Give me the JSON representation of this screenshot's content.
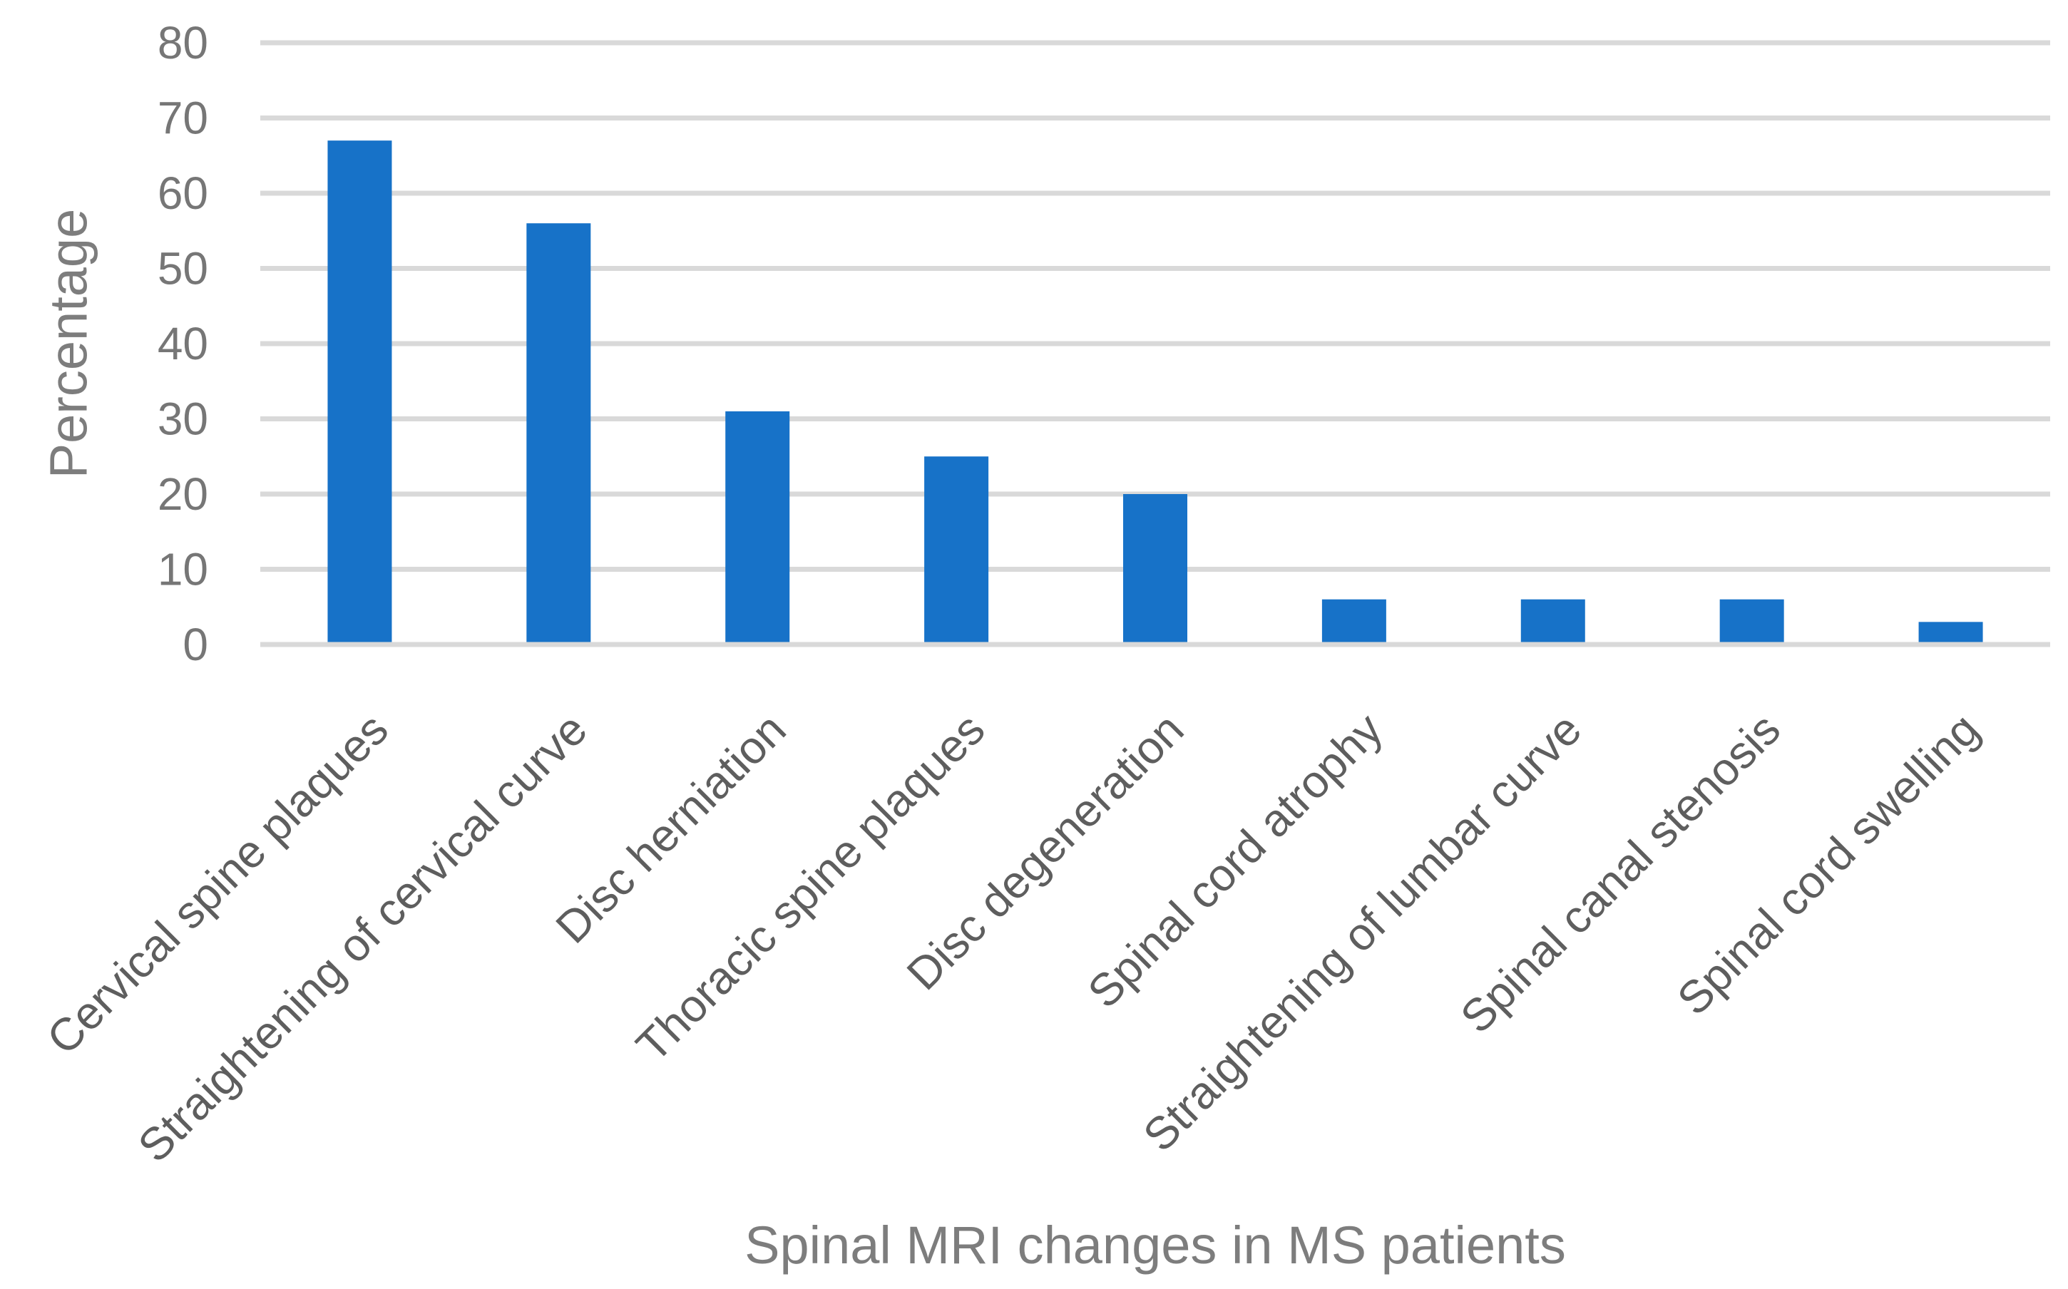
{
  "chart_data": {
    "type": "bar",
    "categories": [
      "Cervical spine plaques",
      "Straightening of cervical curve",
      "Disc herniation",
      "Thoracic spine plaques",
      "Disc degeneration",
      "Spinal cord atrophy",
      "Straightening of lumbar curve",
      "Spinal canal stenosis",
      "Spinal cord swelling"
    ],
    "values": [
      67,
      56,
      31,
      25,
      20,
      6,
      6,
      6,
      3
    ],
    "title": "",
    "xlabel": "Spinal MRI changes in MS patients",
    "ylabel": "Percentage",
    "ylim": [
      0,
      80
    ],
    "ytick_step": 10,
    "ytick_labels": [
      "0",
      "10",
      "20",
      "30",
      "40",
      "50",
      "60",
      "70",
      "80"
    ],
    "grid": true,
    "legend_position": "none",
    "colors": {
      "bar": "#1772C8",
      "gridline": "#D9D9D9",
      "axis_line": "#D9D9D9",
      "tick_text": "#767676",
      "category_text": "#5E5E5E",
      "axis_title_text": "#7D7D7D",
      "background": "#FFFFFF"
    }
  }
}
